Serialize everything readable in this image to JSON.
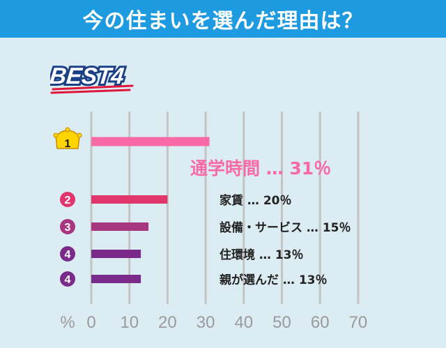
{
  "header": {
    "title": "今の住まいを選んだ理由は？"
  },
  "badge": {
    "label": "BEST4"
  },
  "colors": {
    "header_bg": "#1e9ae0",
    "background": "#dcecf3",
    "grid": "#c4c4c4",
    "axis_text": "#9a9a9a",
    "rank1": "#f76aa6",
    "rank2": "#e0356d",
    "rank3": "#a8357f",
    "rank4": "#7a2a88"
  },
  "chart_data": {
    "type": "bar",
    "orientation": "horizontal",
    "categories": [
      "通学時間",
      "家賃",
      "設備・サービス",
      "住環境",
      "親が選んだ"
    ],
    "values": [
      31,
      20,
      15,
      13,
      13
    ],
    "ranks": [
      "1",
      "2",
      "3",
      "4",
      "4"
    ],
    "value_labels": [
      "通学時間 … 31％",
      "家賃 … 20％",
      "設備・サービス … 15％",
      "住環境 … 13％",
      "親が選んだ … 13％"
    ],
    "xlabel": "%",
    "xlim": [
      0,
      70
    ],
    "ticks": [
      0,
      10,
      20,
      30,
      40,
      50,
      60,
      70
    ],
    "grid": true
  }
}
